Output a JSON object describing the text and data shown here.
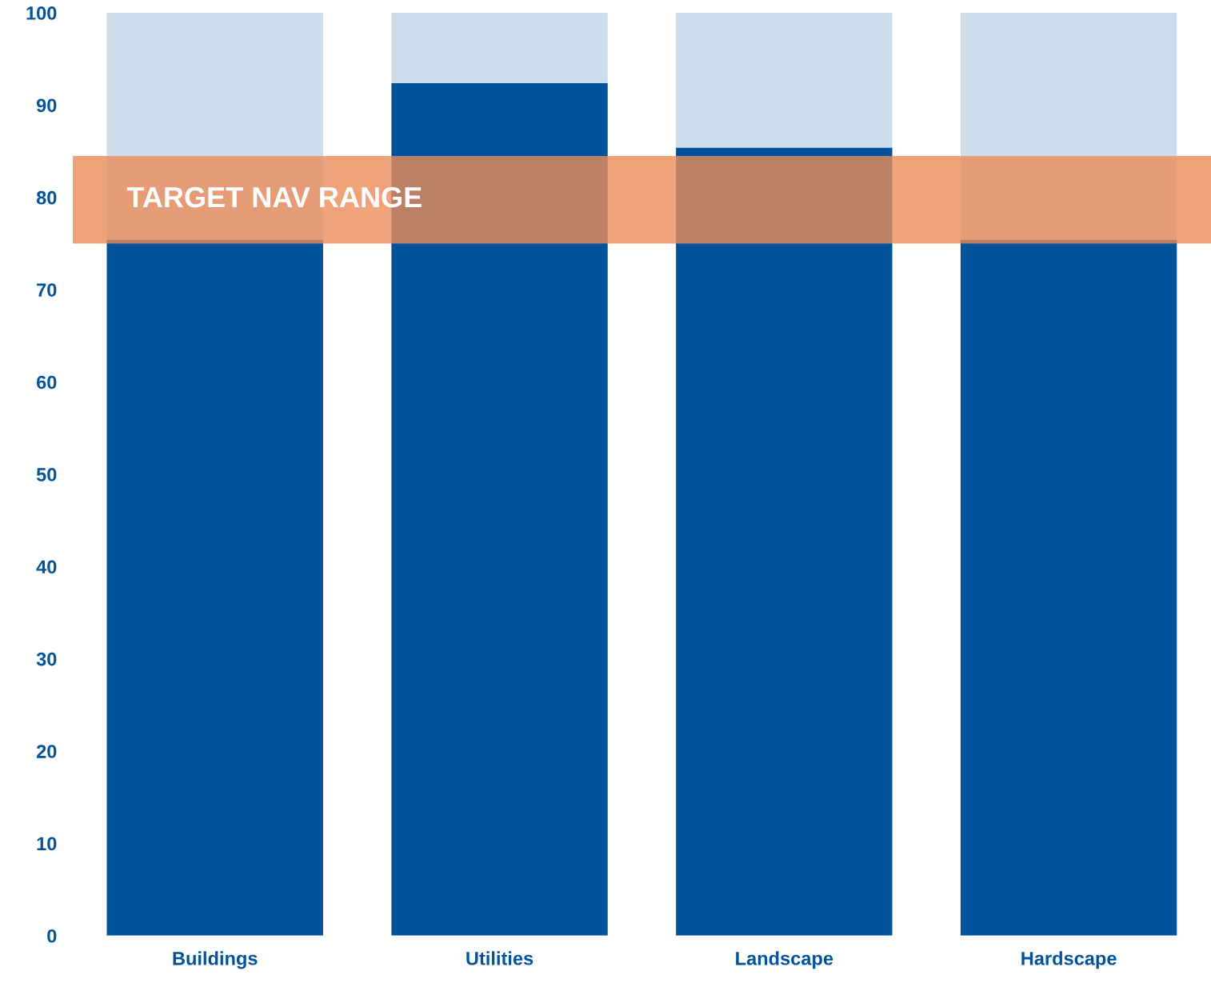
{
  "chart_data": {
    "type": "bar",
    "stacked": true,
    "categories": [
      "Buildings",
      "Utilities",
      "Landscape",
      "Hardscape"
    ],
    "series": [
      {
        "color": "#00529b",
        "values": [
          75.4,
          92.4,
          85.4,
          75.4
        ]
      },
      {
        "color": "#ccdeec",
        "values": [
          24.6,
          7.6,
          14.6,
          24.6
        ]
      }
    ],
    "ylim": [
      0,
      100
    ],
    "yticks": [
      0,
      10,
      20,
      30,
      40,
      50,
      60,
      70,
      80,
      90,
      100
    ],
    "bands": [
      {
        "axis": "y",
        "from": 75,
        "to": 84.5,
        "label": "TARGET NAV RANGE",
        "color": "#eb8c5a"
      }
    ],
    "grid": false,
    "legend": false
  }
}
